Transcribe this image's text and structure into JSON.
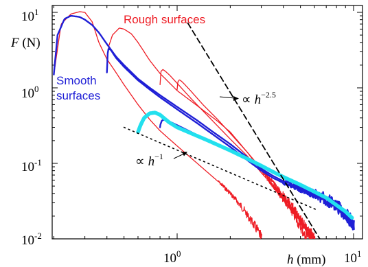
{
  "chart_data": {
    "type": "line",
    "title": "",
    "xscale": "log",
    "yscale": "log",
    "xlim": [
      0.2,
      11
    ],
    "ylim": [
      0.01,
      13
    ],
    "grid": false,
    "xlabel": {
      "var": "h",
      "unit": " (mm)"
    },
    "ylabel": {
      "var": "F",
      "unit": " (N)"
    },
    "x_ticks": [
      {
        "value": 1,
        "mant": "10",
        "exp": "0"
      },
      {
        "value": 10,
        "mant": "10",
        "exp": "1"
      }
    ],
    "y_ticks": [
      {
        "value": 10,
        "mant": "10",
        "exp": "1"
      },
      {
        "value": 1,
        "mant": "10",
        "exp": "0"
      },
      {
        "value": 0.1,
        "mant": "10",
        "exp": "-1"
      },
      {
        "value": 0.01,
        "mant": "10",
        "exp": "-2"
      }
    ],
    "annotations": {
      "rough": "Rough surfaces",
      "smooth_line1": "Smooth",
      "smooth_line2": "surfaces",
      "prop": "∝",
      "power_var": "h",
      "steep_exp": "−2.5",
      "shallow_exp": "−1"
    },
    "colors": {
      "rough": "#ee1c24",
      "smooth": "#1f1fd6",
      "smooth_light": "#22e0ee",
      "guide": "#000000"
    },
    "series": [
      {
        "key": "rough-1",
        "color": "#ee1c24",
        "width": 1.3,
        "x": [
          0.2,
          0.22,
          0.25,
          0.28,
          0.3,
          0.33,
          0.36,
          0.4,
          0.45,
          0.5,
          0.6,
          0.7,
          0.8,
          1.0,
          1.3,
          1.7,
          2.0,
          2.3,
          2.6,
          2.9,
          3.0
        ],
        "y": [
          1.5,
          7.0,
          9.5,
          10.2,
          10.0,
          7.5,
          4.0,
          2.4,
          1.6,
          1.1,
          0.6,
          0.38,
          0.27,
          0.17,
          0.1,
          0.058,
          0.04,
          0.027,
          0.018,
          0.012,
          0.01
        ],
        "noise_from": 1.7
      },
      {
        "key": "rough-2",
        "color": "#ee1c24",
        "width": 1.3,
        "x": [
          0.4,
          0.41,
          0.43,
          0.47,
          0.5,
          0.55,
          0.6,
          0.7,
          0.8,
          1.0,
          1.3,
          1.7,
          2.0,
          2.5,
          3.0,
          3.5,
          4.0,
          4.5,
          5.0,
          5.4
        ],
        "y": [
          2.3,
          3.6,
          5.0,
          6.2,
          6.0,
          5.2,
          4.0,
          2.3,
          1.55,
          0.92,
          0.58,
          0.36,
          0.26,
          0.14,
          0.08,
          0.05,
          0.033,
          0.022,
          0.014,
          0.01
        ],
        "noise_from": 3.0
      },
      {
        "key": "rough-3",
        "color": "#ee1c24",
        "width": 1.3,
        "x": [
          0.8,
          0.81,
          0.83,
          0.86,
          0.9,
          1.0,
          1.2,
          1.5,
          2.0,
          2.5,
          3.0,
          3.5,
          4.0,
          4.5,
          5.0,
          5.6,
          6.0
        ],
        "y": [
          1.1,
          1.65,
          1.75,
          1.65,
          1.5,
          1.15,
          0.72,
          0.42,
          0.21,
          0.125,
          0.075,
          0.05,
          0.034,
          0.024,
          0.017,
          0.011,
          0.01
        ],
        "noise_from": 3.2
      },
      {
        "key": "rough-4",
        "color": "#ee1c24",
        "width": 1.3,
        "x": [
          1.0,
          1.01,
          1.03,
          1.06,
          1.1,
          1.2,
          1.4,
          1.7,
          2.0,
          2.5,
          3.0,
          3.5,
          4.0,
          4.5,
          5.0,
          5.5,
          6.0
        ],
        "y": [
          0.95,
          1.2,
          1.28,
          1.22,
          1.12,
          0.9,
          0.6,
          0.38,
          0.25,
          0.14,
          0.085,
          0.055,
          0.037,
          0.026,
          0.018,
          0.013,
          0.01
        ],
        "noise_from": 3.0
      },
      {
        "key": "smooth-1",
        "color": "#1f1fd6",
        "width": 2.4,
        "x": [
          0.2,
          0.21,
          0.23,
          0.25,
          0.28,
          0.3,
          0.33,
          0.36,
          0.4,
          0.45,
          0.5,
          0.6,
          0.7,
          0.8,
          1.0,
          1.3,
          1.6,
          2.0,
          2.5,
          3.0,
          3.5,
          4.0,
          5.0,
          6.0,
          7.0,
          8.0,
          9.0,
          10.0
        ],
        "y": [
          1.5,
          5.0,
          8.2,
          9.0,
          8.7,
          8.0,
          6.8,
          5.4,
          3.8,
          2.6,
          2.0,
          1.32,
          1.0,
          0.8,
          0.56,
          0.37,
          0.26,
          0.18,
          0.12,
          0.085,
          0.068,
          0.058,
          0.047,
          0.04,
          0.034,
          0.028,
          0.022,
          0.016
        ],
        "noise_from": 4.0
      },
      {
        "key": "smooth-2",
        "color": "#1f1fd6",
        "width": 2.4,
        "x": [
          0.4,
          0.405,
          0.42,
          0.45,
          0.5,
          0.6,
          0.7,
          0.8,
          1.0,
          1.3,
          1.6,
          2.0,
          2.5,
          3.0,
          3.5,
          4.0,
          5.0,
          6.0,
          7.0,
          8.0,
          9.0,
          10.0
        ],
        "y": [
          1.6,
          3.3,
          3.2,
          2.5,
          1.9,
          1.26,
          0.95,
          0.75,
          0.52,
          0.34,
          0.24,
          0.165,
          0.11,
          0.08,
          0.064,
          0.055,
          0.045,
          0.038,
          0.032,
          0.026,
          0.02,
          0.014
        ],
        "noise_from": 4.0
      },
      {
        "key": "smooth-3",
        "color": "#1f1fd6",
        "width": 2.4,
        "x": [
          0.8,
          0.805,
          0.82,
          0.85,
          0.9,
          1.0,
          1.2,
          1.5,
          2.0
        ],
        "y": [
          0.3,
          0.33,
          0.37,
          0.38,
          0.36,
          0.32,
          0.26,
          0.2,
          0.15
        ],
        "noise_from": null
      },
      {
        "key": "smooth-4",
        "color": "#22e0ee",
        "width": 5.5,
        "x": [
          0.6,
          0.62,
          0.65,
          0.7,
          0.75,
          0.8,
          0.85,
          0.9,
          1.0,
          1.2,
          1.5,
          2.0,
          2.5,
          3.0,
          3.5,
          4.0,
          5.0,
          6.0,
          7.0,
          8.0,
          9.0,
          9.8
        ],
        "y": [
          0.26,
          0.32,
          0.4,
          0.46,
          0.47,
          0.44,
          0.39,
          0.35,
          0.3,
          0.25,
          0.2,
          0.148,
          0.115,
          0.093,
          0.077,
          0.066,
          0.052,
          0.042,
          0.035,
          0.028,
          0.023,
          0.019
        ],
        "noise_from": null
      }
    ],
    "guides": [
      {
        "key": "guide-steep",
        "exponent": -2.5,
        "x": [
          1.15,
          6.5
        ],
        "y": [
          7.2,
          0.0096
        ],
        "dash": "8 5"
      },
      {
        "key": "guide-shallow",
        "exponent": -1,
        "x": [
          0.5,
          6.3
        ],
        "y": [
          0.3,
          0.0238
        ],
        "dash": "2 5"
      }
    ]
  }
}
